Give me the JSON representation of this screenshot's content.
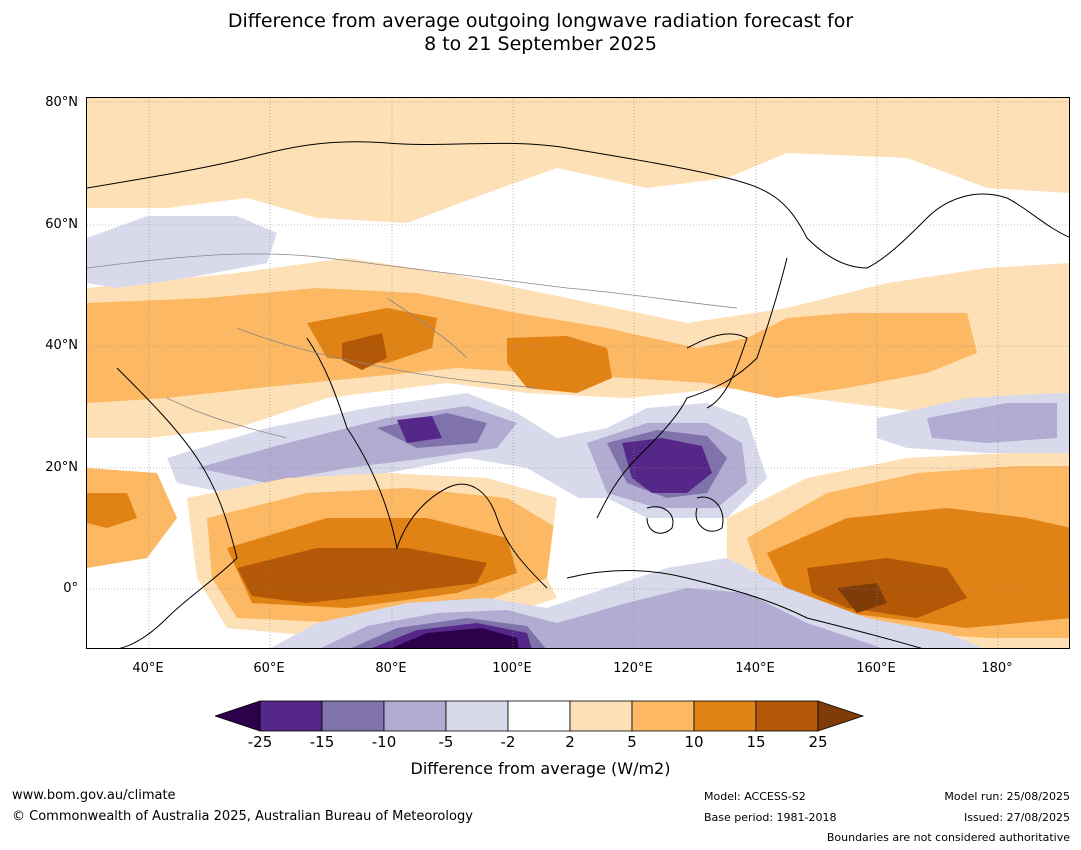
{
  "title_line1": "Difference from average outgoing longwave radiation forecast for",
  "title_line2": "8 to 21 September 2025",
  "lat_labels": [
    "80°N",
    "60°N",
    "40°N",
    "20°N",
    "0°"
  ],
  "lon_labels": [
    "40°E",
    "60°E",
    "80°E",
    "100°E",
    "120°E",
    "140°E",
    "160°E",
    "180°"
  ],
  "colorbar": {
    "ticks": [
      "-25",
      "-15",
      "-10",
      "-5",
      "-2",
      "2",
      "5",
      "10",
      "15",
      "25"
    ],
    "colors": [
      "#2d004b",
      "#542788",
      "#8073ac",
      "#b2abd2",
      "#d8daeb",
      "#ffffff",
      "#fee0b6",
      "#fdb863",
      "#e08214",
      "#b35806",
      "#7f3b08"
    ],
    "label": "Difference from average (W/m2)"
  },
  "footer": {
    "website": "www.bom.gov.au/climate",
    "copyright": "© Commonwealth of Australia 2025, Australian Bureau of Meteorology",
    "model": "Model: ACCESS-S2",
    "base_period": "Base period: 1981-2018",
    "model_run": "Model run: 25/08/2025",
    "issued": "Issued: 27/08/2025",
    "disclaimer": "Boundaries are not considered authoritative"
  }
}
